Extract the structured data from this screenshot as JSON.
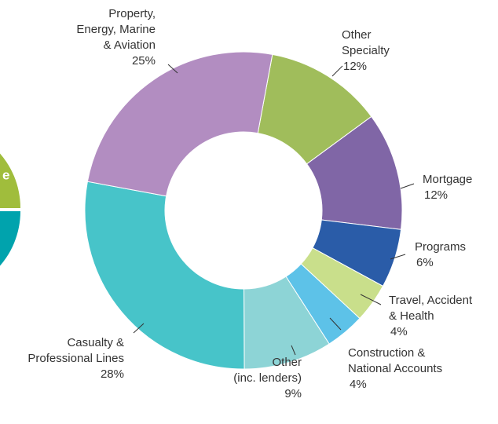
{
  "chart_data": {
    "type": "pie",
    "donut": true,
    "start_angle": 10.5,
    "categories": [
      [
        "Other",
        "Specialty"
      ],
      [
        "Mortgage"
      ],
      [
        "Programs"
      ],
      [
        "Travel, Accident",
        "& Health"
      ],
      [
        "Construction &",
        "National Accounts"
      ],
      [
        "Other",
        "(inc. lenders)"
      ],
      [
        "Casualty &",
        "Professional Lines"
      ],
      [
        "Property,",
        "Energy, Marine",
        "& Aviation"
      ]
    ],
    "values": [
      12,
      12,
      6,
      4,
      4,
      9,
      28,
      25
    ],
    "value_labels": [
      "12%",
      "12%",
      "6%",
      "4%",
      "4%",
      "9%",
      "28%",
      "25%"
    ],
    "colors": [
      "#a0bd5b",
      "#8066a6",
      "#2a5ca8",
      "#c9df8b",
      "#5dc2e8",
      "#8dd4d6",
      "#47c4c9",
      "#b28dc1"
    ]
  },
  "side_fragment": {
    "label": "e",
    "colors": [
      "#a0bd3c",
      "#00a3ad"
    ]
  }
}
